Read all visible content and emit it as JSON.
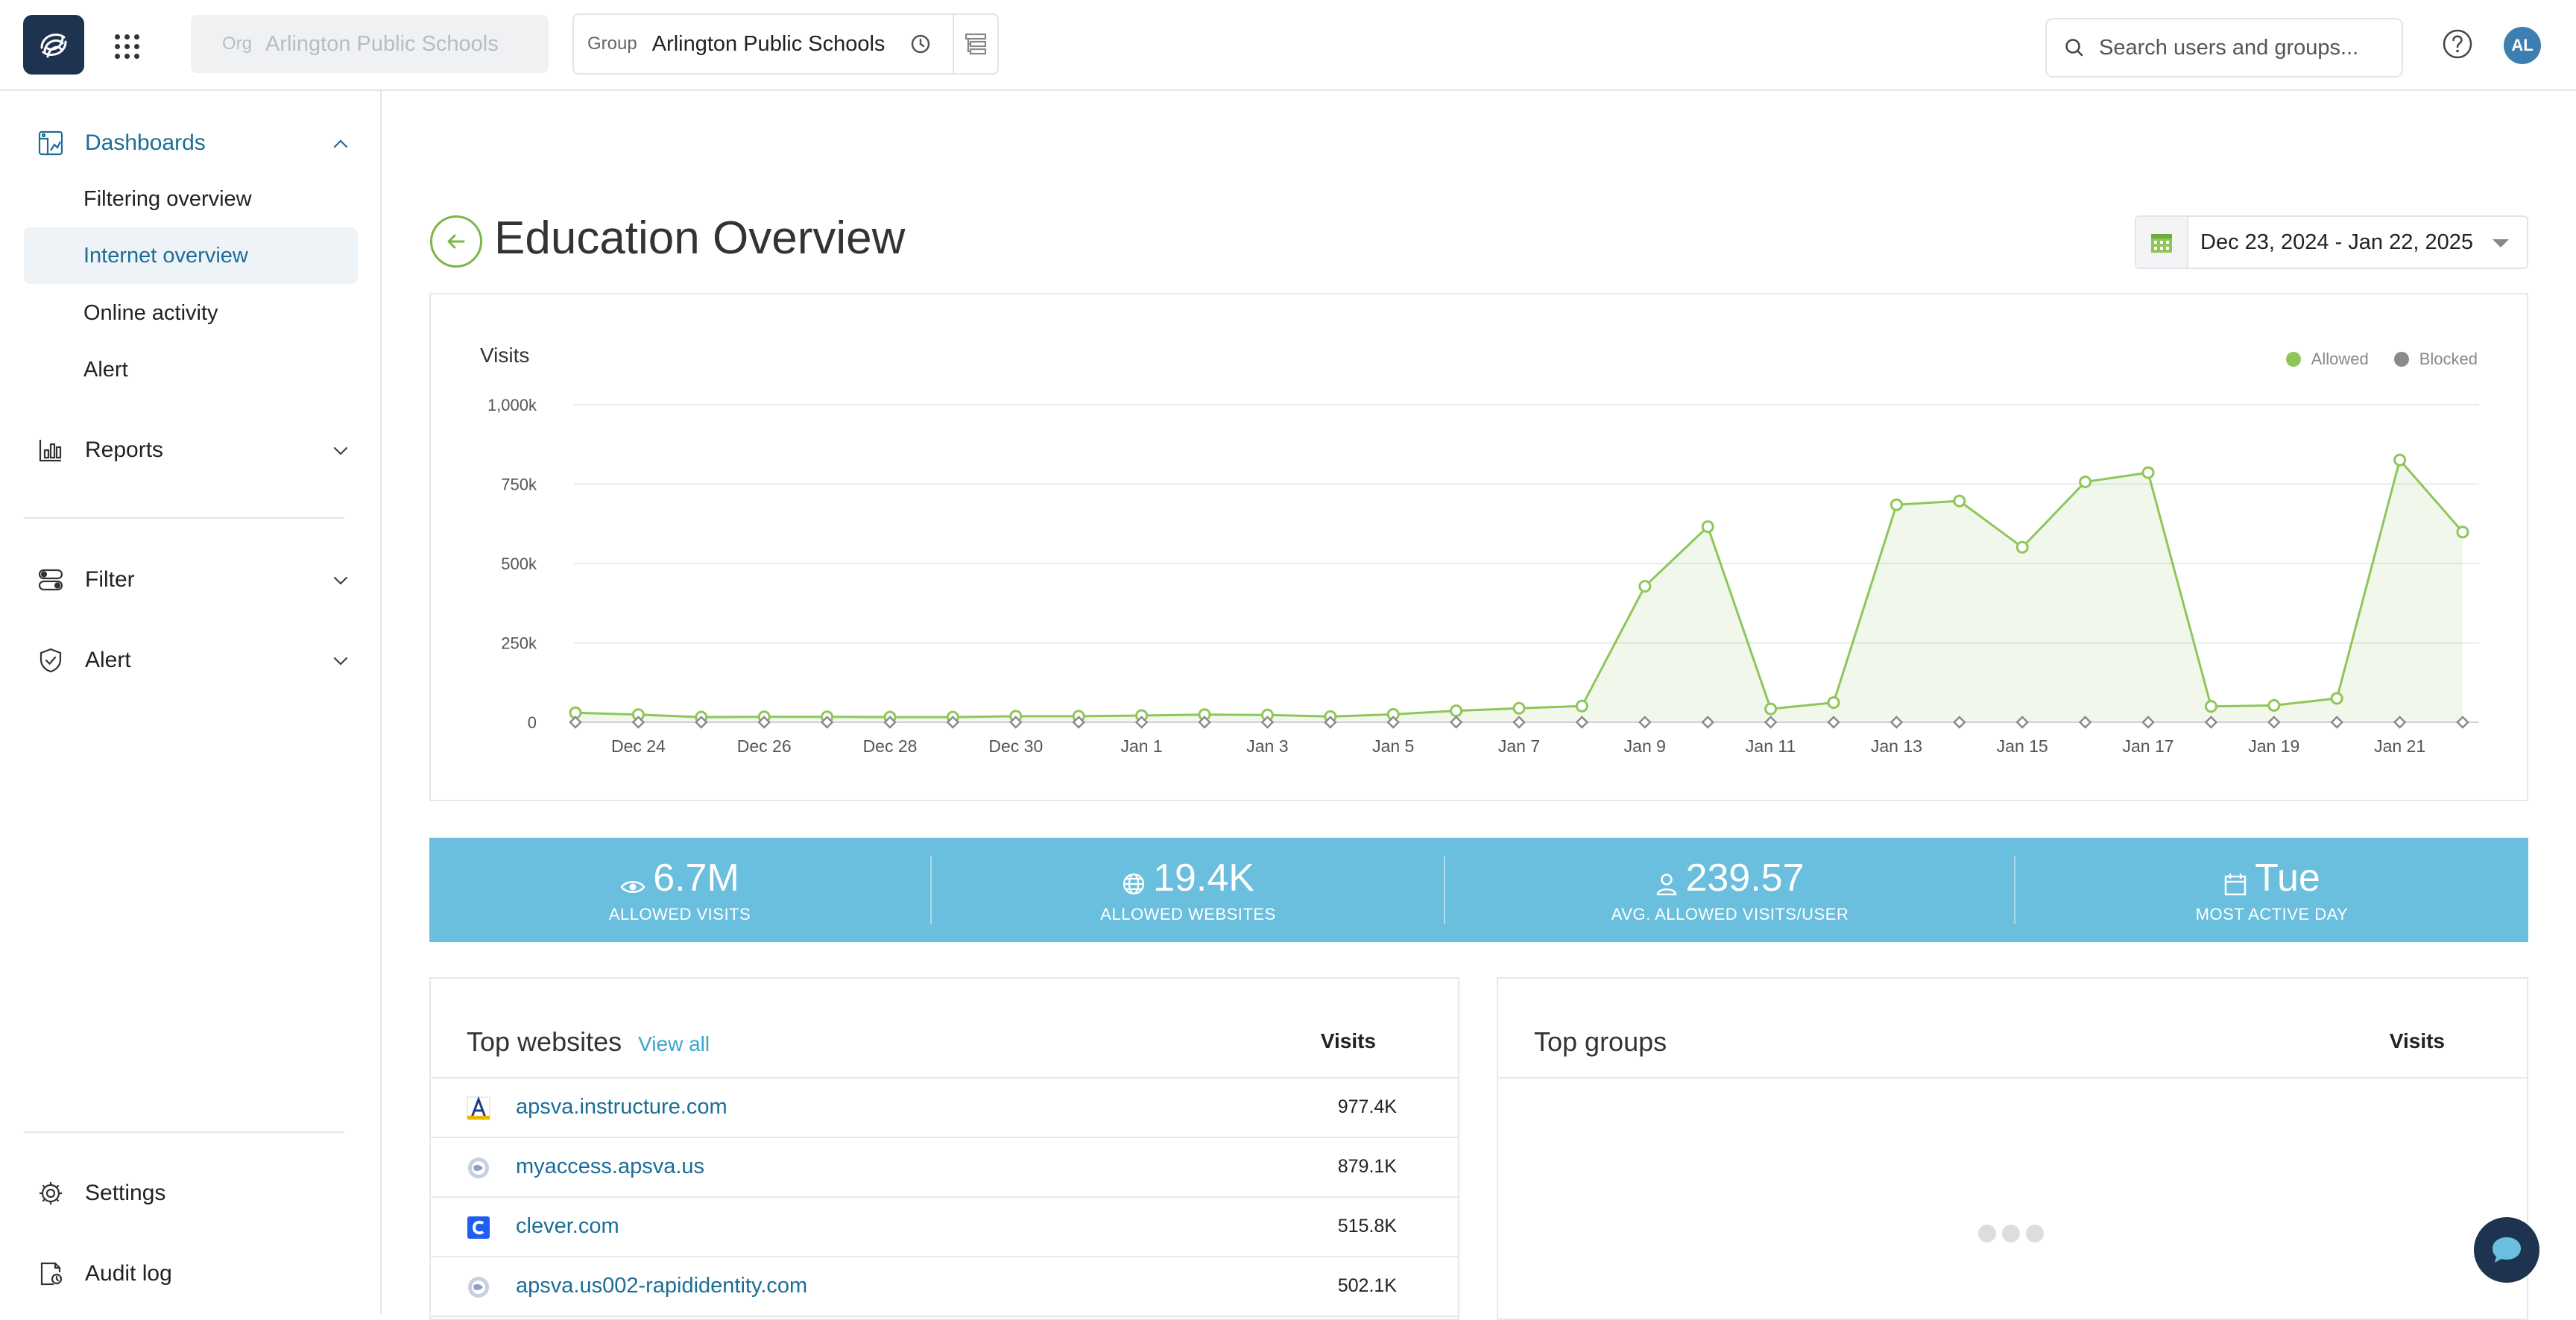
{
  "header": {
    "org_label": "Org",
    "org_value": "Arlington Public Schools",
    "group_label": "Group",
    "group_value": "Arlington Public Schools",
    "search_placeholder": "Search users and groups...",
    "avatar_initials": "AL"
  },
  "sidebar": {
    "dashboards": {
      "label": "Dashboards",
      "items": [
        {
          "label": "Filtering overview"
        },
        {
          "label": "Internet overview",
          "active": true
        },
        {
          "label": "Online activity"
        },
        {
          "label": "Alert"
        }
      ]
    },
    "reports": {
      "label": "Reports"
    },
    "filter": {
      "label": "Filter"
    },
    "alert": {
      "label": "Alert"
    },
    "settings": {
      "label": "Settings"
    },
    "audit_log": {
      "label": "Audit log"
    }
  },
  "main": {
    "title": "Education Overview",
    "date_range": "Dec 23, 2024 - Jan 22, 2025"
  },
  "chart_data": {
    "type": "area",
    "title": "Visits",
    "x": [
      "Dec 23",
      "Dec 24",
      "Dec 25",
      "Dec 26",
      "Dec 27",
      "Dec 28",
      "Dec 29",
      "Dec 30",
      "Dec 31",
      "Jan 1",
      "Jan 2",
      "Jan 3",
      "Jan 4",
      "Jan 5",
      "Jan 6",
      "Jan 7",
      "Jan 8",
      "Jan 9",
      "Jan 10",
      "Jan 11",
      "Jan 12",
      "Jan 13",
      "Jan 14",
      "Jan 15",
      "Jan 16",
      "Jan 17",
      "Jan 18",
      "Jan 19",
      "Jan 20",
      "Jan 21",
      "Jan 22"
    ],
    "x_tick_labels": [
      "Dec 24",
      "Dec 26",
      "Dec 28",
      "Dec 30",
      "Jan 1",
      "Jan 3",
      "Jan 5",
      "Jan 7",
      "Jan 9",
      "Jan 11",
      "Jan 13",
      "Jan 15",
      "Jan 17",
      "Jan 19",
      "Jan 21"
    ],
    "y_tick_labels": [
      "0",
      "250k",
      "500k",
      "750k",
      "1,000k"
    ],
    "ylim": [
      0,
      1000000
    ],
    "legend_position": "top-right",
    "series": [
      {
        "name": "Allowed",
        "color": "#8ec65a",
        "values": [
          30000,
          24000,
          16000,
          17000,
          17000,
          16000,
          16000,
          19000,
          19000,
          21000,
          24000,
          23000,
          18000,
          25000,
          36000,
          44000,
          51000,
          428000,
          616000,
          42000,
          62000,
          685000,
          697000,
          551000,
          757000,
          786000,
          50000,
          53000,
          75000,
          826000,
          599000
        ]
      },
      {
        "name": "Blocked",
        "color": "#8a8a8a",
        "values": [
          0,
          0,
          0,
          0,
          0,
          0,
          0,
          0,
          0,
          0,
          0,
          0,
          0,
          0,
          0,
          0,
          0,
          0,
          0,
          0,
          0,
          0,
          0,
          0,
          0,
          0,
          0,
          0,
          0,
          0,
          0
        ]
      }
    ]
  },
  "stats": [
    {
      "value": "6.7M",
      "label": "ALLOWED VISITS",
      "icon": "eye-icon"
    },
    {
      "value": "19.4K",
      "label": "ALLOWED WEBSITES",
      "icon": "globe-icon"
    },
    {
      "value": "239.57",
      "label": "AVG. ALLOWED VISITS/USER",
      "icon": "user-icon"
    },
    {
      "value": "Tue",
      "label": "MOST ACTIVE DAY",
      "icon": "calendar-icon"
    }
  ],
  "top_websites": {
    "title": "Top websites",
    "view_all": "View all",
    "col": "Visits",
    "rows": [
      {
        "site": "apsva.instructure.com",
        "visits": "977.4K"
      },
      {
        "site": "myaccess.apsva.us",
        "visits": "879.1K"
      },
      {
        "site": "clever.com",
        "visits": "515.8K"
      },
      {
        "site": "apsva.us002-rapididentity.com",
        "visits": "502.1K"
      }
    ]
  },
  "top_groups": {
    "title": "Top groups",
    "col": "Visits"
  }
}
